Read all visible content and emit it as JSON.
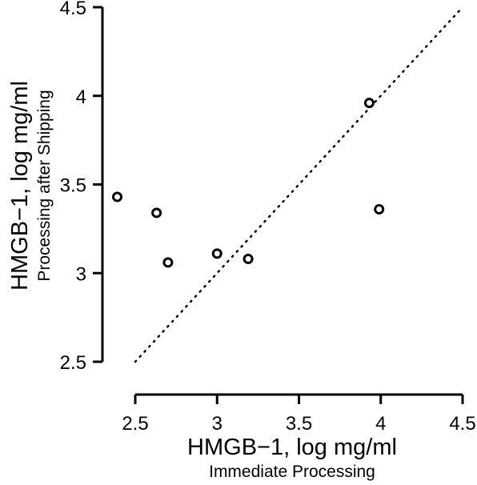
{
  "chart_data": {
    "type": "scatter",
    "xlabel": "HMGB−1, log mg/ml",
    "xlabel_sub": "Immediate Processing",
    "ylabel": "HMGB−1, log mg/ml",
    "ylabel_sub": "Processing after Shipping",
    "xlim": [
      2.5,
      4.5
    ],
    "ylim": [
      2.5,
      4.5
    ],
    "xticks": [
      2.5,
      3,
      3.5,
      4,
      4.5
    ],
    "yticks": [
      2.5,
      3,
      3.5,
      4,
      4.5
    ],
    "xtick_labels": [
      "2.5",
      "3",
      "3.5",
      "4",
      "4.5"
    ],
    "ytick_labels": [
      "2.5",
      "3",
      "3.5",
      "4",
      "4.5"
    ],
    "reference_line": "identity (y = x), dotted",
    "grid": false,
    "marker": "open circle",
    "color": "#000000",
    "points": [
      {
        "x": 2.39,
        "y": 3.43
      },
      {
        "x": 2.63,
        "y": 3.34
      },
      {
        "x": 2.7,
        "y": 3.06
      },
      {
        "x": 3.0,
        "y": 3.11
      },
      {
        "x": 3.19,
        "y": 3.08
      },
      {
        "x": 3.93,
        "y": 3.96
      },
      {
        "x": 3.99,
        "y": 3.36
      }
    ]
  }
}
